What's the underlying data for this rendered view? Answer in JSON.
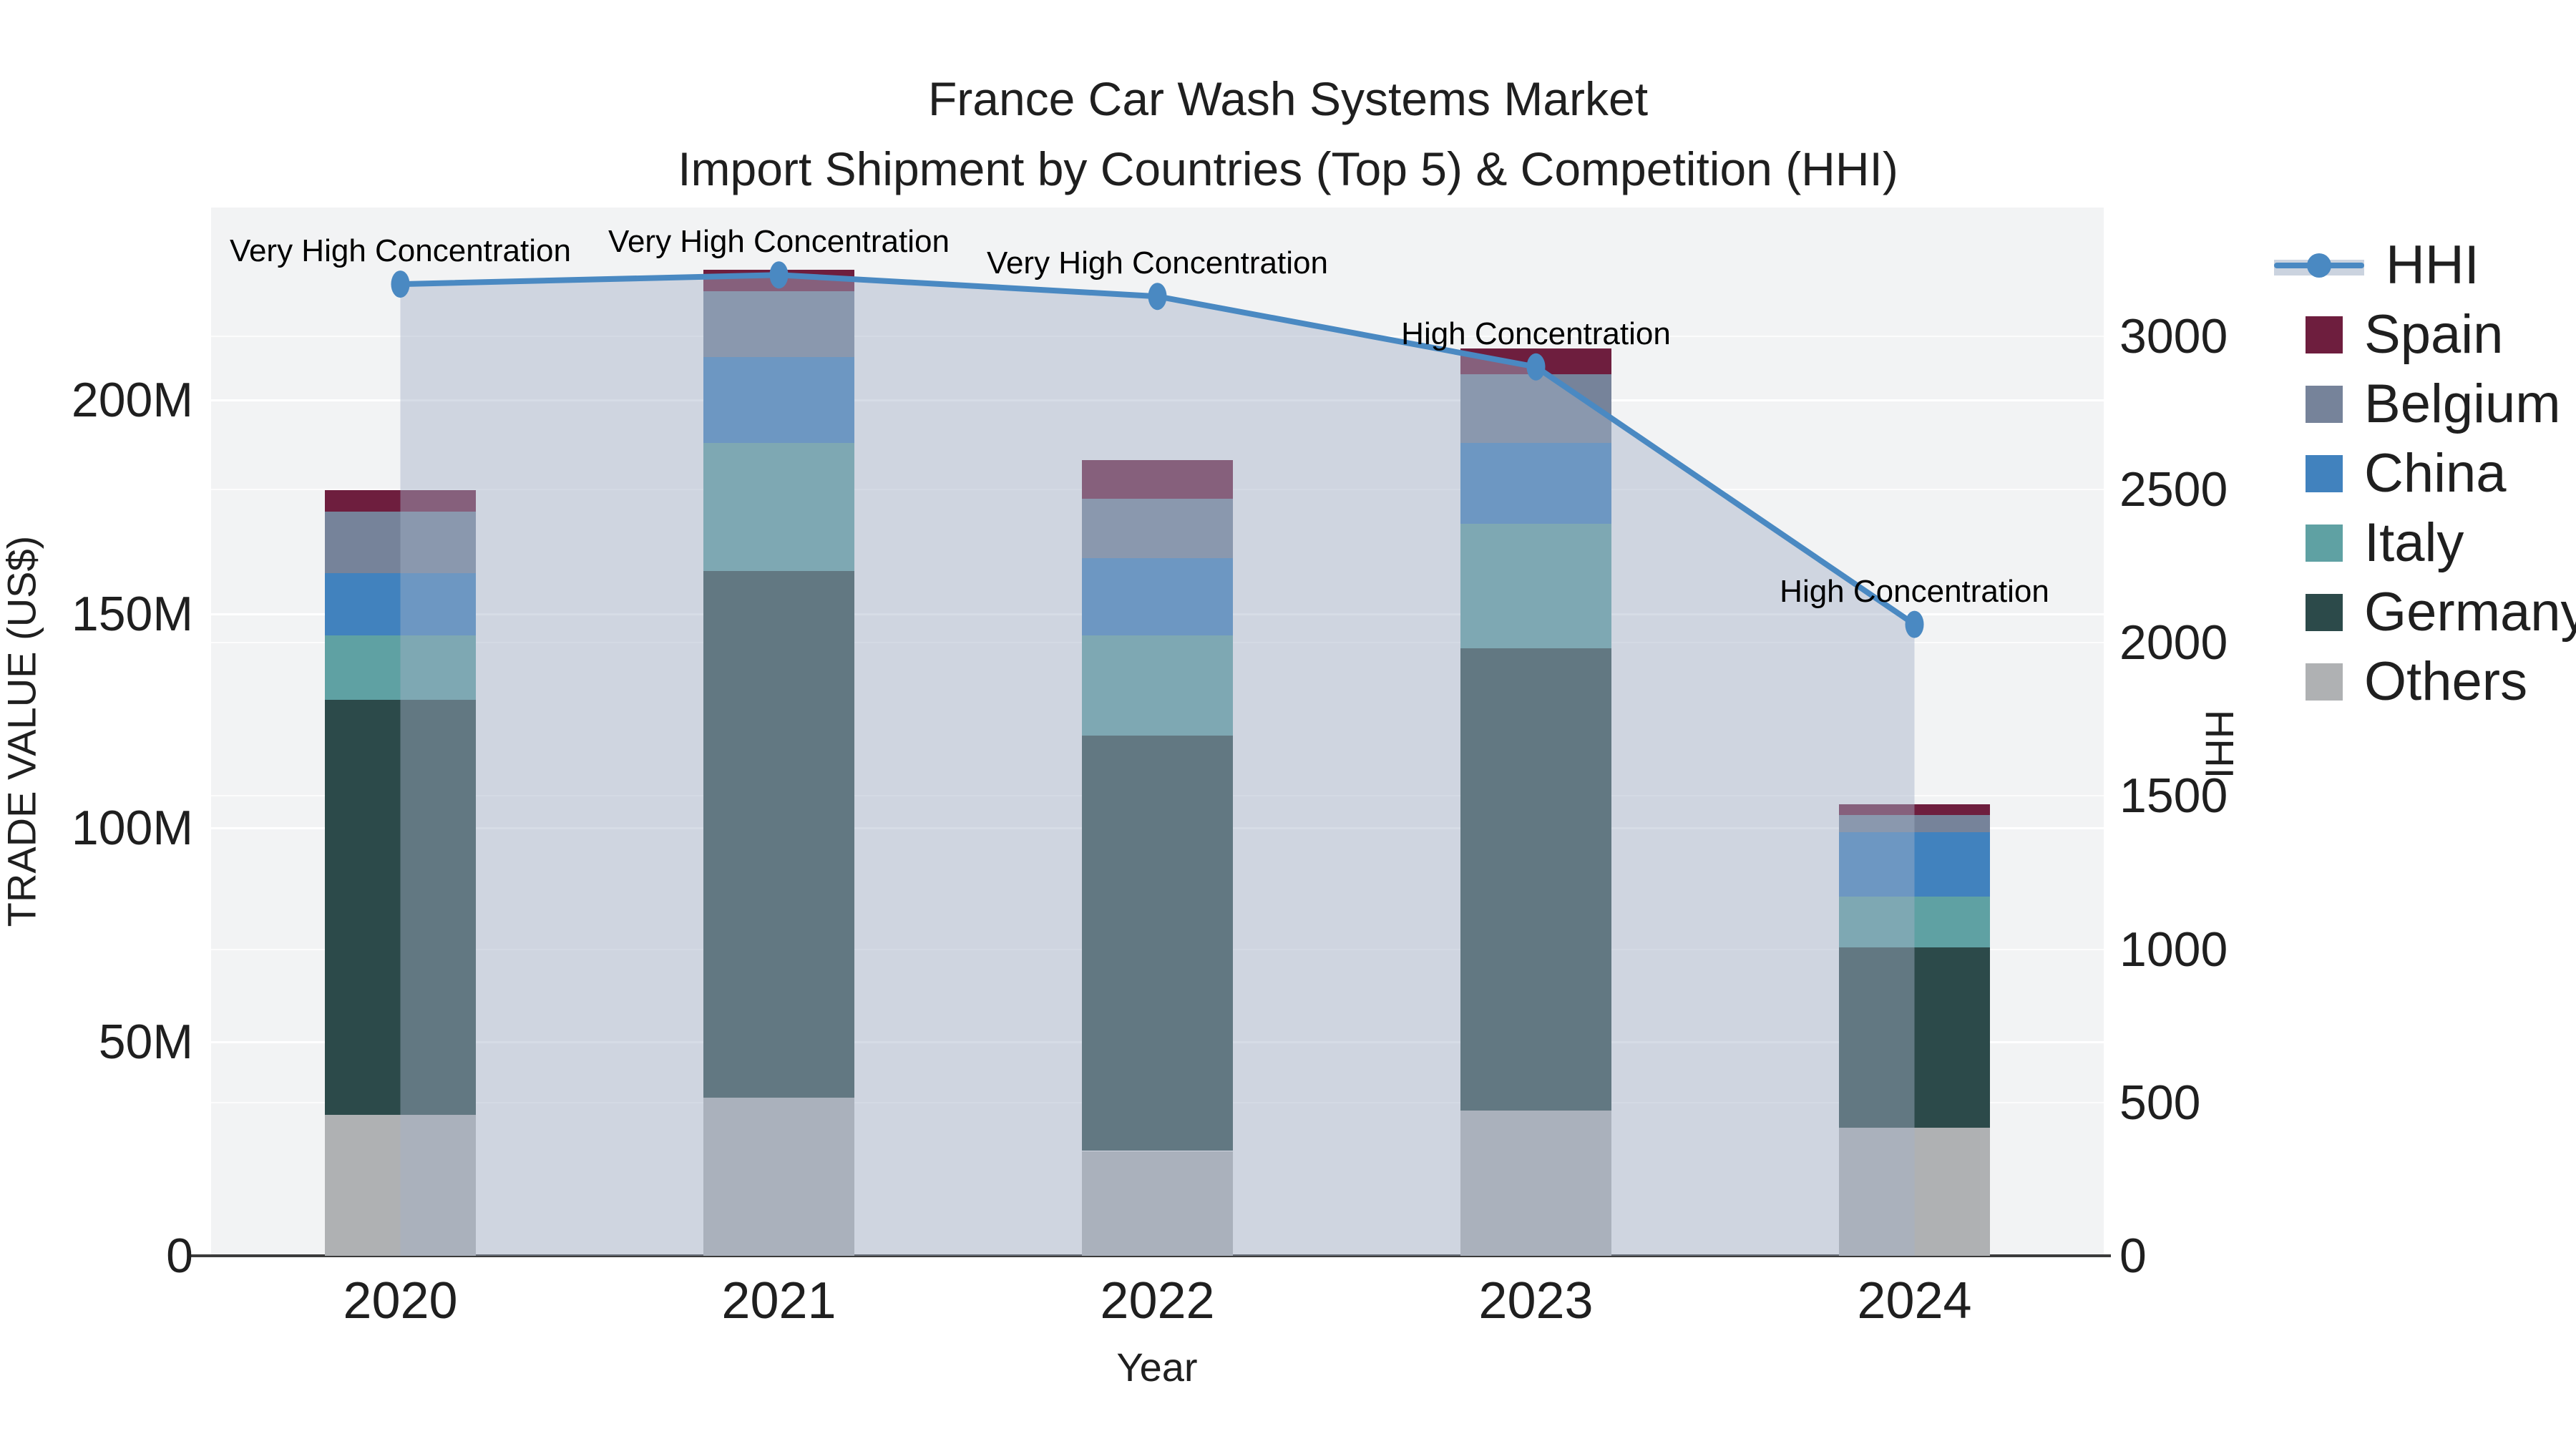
{
  "title": {
    "line1": "France Car Wash Systems Market",
    "line2": "Import Shipment by Countries (Top 5) & Competition (HHI)"
  },
  "axes": {
    "x": {
      "title": "Year",
      "categories": [
        "2020",
        "2021",
        "2022",
        "2023",
        "2024"
      ]
    },
    "y_left": {
      "title": "TRADE VALUE (US$)",
      "tick_labels": [
        "0",
        "50M",
        "100M",
        "150M",
        "200M"
      ],
      "tick_values": [
        0,
        50,
        100,
        150,
        200
      ],
      "range": [
        0,
        245
      ],
      "units": "millions USD"
    },
    "y_right": {
      "title": "HHI",
      "tick_labels": [
        "0",
        "500",
        "1000",
        "1500",
        "2000",
        "2500",
        "3000"
      ],
      "tick_values": [
        0,
        500,
        1000,
        1500,
        2000,
        2500,
        3000
      ],
      "range": [
        0,
        3420
      ]
    }
  },
  "legend": {
    "position": "right",
    "items": [
      {
        "label": "HHI",
        "type": "line",
        "color": "#4a89c2",
        "band_color": "#cbd3df"
      },
      {
        "label": "Spain",
        "type": "bar",
        "color": "#6e1e3e"
      },
      {
        "label": "Belgium",
        "type": "bar",
        "color": "#76839a"
      },
      {
        "label": "China",
        "type": "bar",
        "color": "#4182be"
      },
      {
        "label": "Italy",
        "type": "bar",
        "color": "#5fa1a3"
      },
      {
        "label": "Germany",
        "type": "bar",
        "color": "#2c4a4a"
      },
      {
        "label": "Others",
        "type": "bar",
        "color": "#afb1b3"
      }
    ]
  },
  "chart_data": {
    "type": "bar",
    "subtype": "stacked bars (left axis) + line with area fill (right axis)",
    "categories": [
      "2020",
      "2021",
      "2022",
      "2023",
      "2024"
    ],
    "bar_width_fraction": 0.4,
    "grid": "on",
    "series": [
      {
        "name": "Others",
        "stack_order": 1,
        "color": "#afb1b3",
        "values": [
          33,
          37,
          24.5,
          34,
          30
        ]
      },
      {
        "name": "Germany",
        "stack_order": 2,
        "color": "#2c4a4a",
        "values": [
          97,
          123,
          97,
          108,
          42
        ]
      },
      {
        "name": "Italy",
        "stack_order": 3,
        "color": "#5fa1a3",
        "values": [
          15,
          30,
          23.5,
          29,
          12
        ]
      },
      {
        "name": "China",
        "stack_order": 4,
        "color": "#4182be",
        "values": [
          14.5,
          20,
          18,
          19,
          15
        ]
      },
      {
        "name": "Belgium",
        "stack_order": 5,
        "color": "#76839a",
        "values": [
          14.5,
          15.5,
          14,
          16,
          4
        ]
      },
      {
        "name": "Spain",
        "stack_order": 6,
        "color": "#6e1e3e",
        "values": [
          5,
          5,
          9,
          6,
          2.5
        ]
      }
    ],
    "bar_totals": [
      179,
      230.5,
      186,
      212,
      105.5
    ],
    "line_series": {
      "name": "HHI",
      "axis": "right",
      "color": "#4a89c2",
      "fill_color": "rgba(165,178,200,0.45)",
      "values": [
        3170,
        3200,
        3130,
        2900,
        2060
      ]
    },
    "annotations": [
      {
        "text": "Very High Concentration",
        "category": "2020"
      },
      {
        "text": "Very High Concentration",
        "category": "2021"
      },
      {
        "text": "Very High Concentration",
        "category": "2022"
      },
      {
        "text": "High Concentration",
        "category": "2023"
      },
      {
        "text": "High Concentration",
        "category": "2024"
      }
    ],
    "colors": {
      "plot_background": "#f2f3f4",
      "page_background": "#ffffff",
      "axis_line": "#3b3b3b",
      "text": "#1f1f1f"
    }
  }
}
